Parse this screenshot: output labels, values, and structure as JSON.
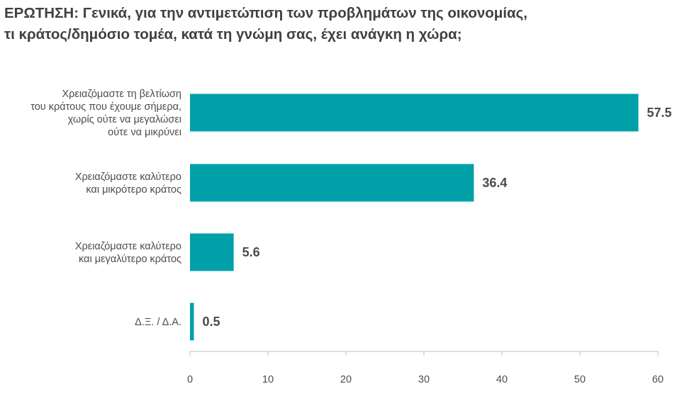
{
  "title_lines": [
    "ΕΡΩΤΗΣΗ: Γενικά, για την αντιμετώπιση των προβλημάτων της οικονομίας,",
    "τι κράτος/δημόσιο τομέα, κατά τη γνώμη σας, έχει ανάγκη η χώρα;"
  ],
  "colors": {
    "bar": "#00a0a8",
    "axis": "#bfbfbf",
    "text": "#4d4d4d"
  },
  "chart_data": {
    "type": "bar",
    "orientation": "horizontal",
    "title": "ΕΡΩΤΗΣΗ: Γενικά, για την αντιμετώπιση των προβλημάτων της οικονομίας, τι κράτος/δημόσιο τομέα, κατά τη γνώμη σας, έχει ανάγκη η χώρα;",
    "categories": [
      [
        "Χρειαζόμαστε τη βελτίωση",
        "του κράτους που έχουμε σήμερα,",
        "χωρίς ούτε να μεγαλώσει",
        "ούτε να μικρύνει"
      ],
      [
        "Χρειαζόμαστε καλύτερο",
        "και μικρότερο κράτος"
      ],
      [
        "Χρειαζόμαστε καλύτερο",
        "και μεγαλύτερο κράτος"
      ],
      [
        "Δ.Ξ. / Δ.Α."
      ]
    ],
    "values": [
      57.5,
      36.4,
      5.6,
      0.5
    ],
    "value_labels": [
      "57.5",
      "36.4",
      "5.6",
      "0.5"
    ],
    "xlim": [
      0,
      60
    ],
    "xticks": [
      "0",
      "10",
      "20",
      "30",
      "40",
      "50",
      "60"
    ],
    "xlabel": "",
    "ylabel": "",
    "grid": false,
    "legend": "none"
  }
}
